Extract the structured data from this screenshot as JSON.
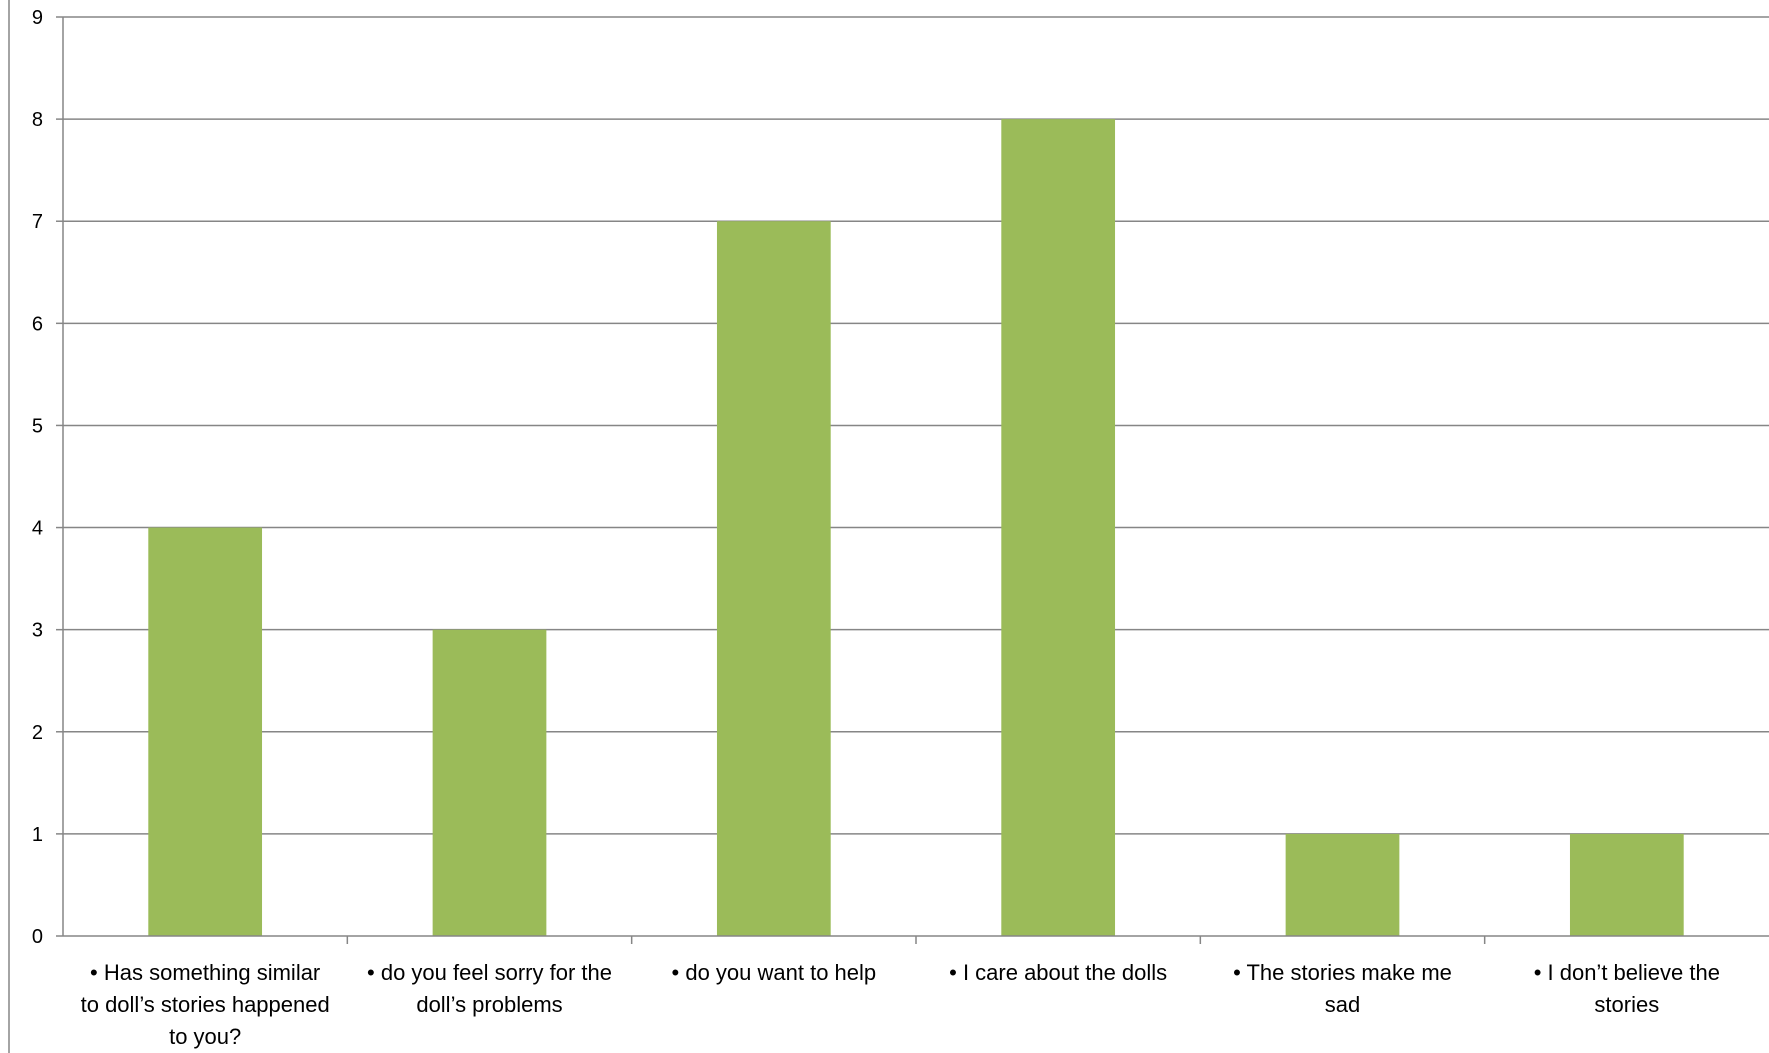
{
  "chart_data": {
    "type": "bar",
    "categories": [
      "• Has something similar to doll’s stories happened to you?",
      "• do you feel sorry for the doll’s problems",
      "• do you want to help",
      "• I care about the dolls",
      "• The stories make me sad",
      "• I don’t believe the stories"
    ],
    "category_lines": [
      [
        "• Has something similar",
        "to doll’s stories happened",
        "to you?"
      ],
      [
        "• do you feel sorry for the",
        "doll’s problems"
      ],
      [
        "• do you want to help"
      ],
      [
        "• I care about the dolls"
      ],
      [
        "• The stories make me",
        "sad"
      ],
      [
        "• I don’t believe the",
        "stories"
      ]
    ],
    "values": [
      4,
      3,
      7,
      8,
      1,
      1
    ],
    "ylim": [
      0,
      9
    ],
    "yticks": [
      0,
      1,
      2,
      3,
      4,
      5,
      6,
      7,
      8,
      9
    ],
    "grid": true,
    "legend": "none",
    "title": "",
    "xlabel": "",
    "ylabel": "",
    "colors": {
      "bar": "#9bbb59",
      "grid": "#868686",
      "text": "#000000"
    }
  }
}
